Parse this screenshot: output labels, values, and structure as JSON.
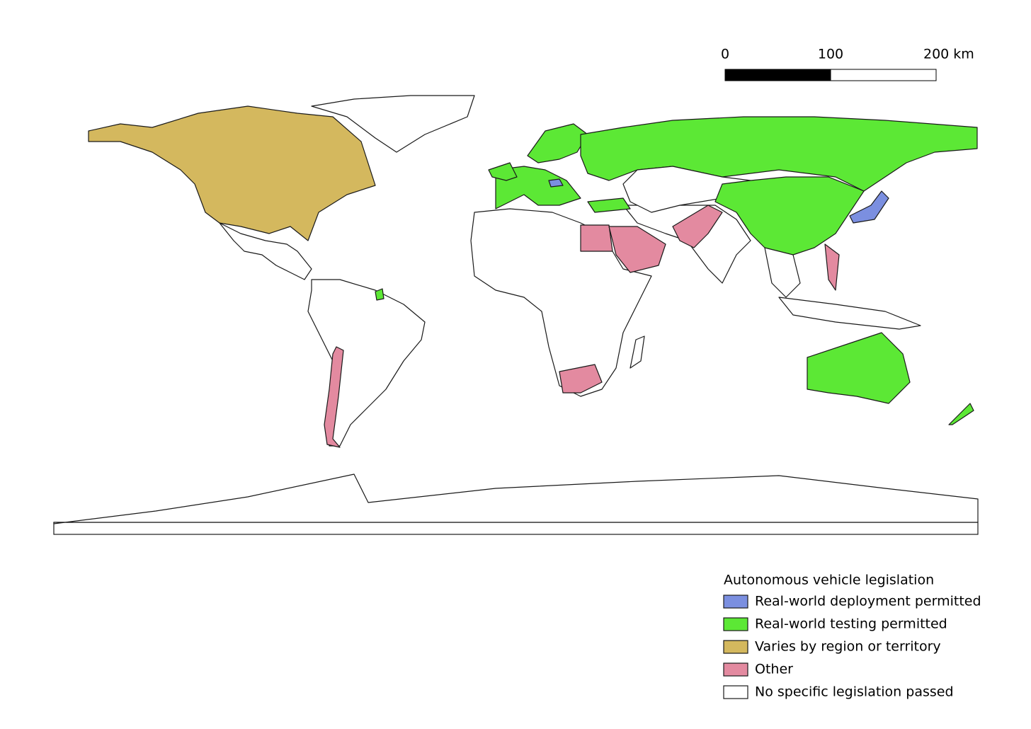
{
  "scale_bar": {
    "range": [
      0,
      200
    ],
    "ticks": [
      0,
      100,
      {
        "value": 200,
        "label": "200 km"
      }
    ]
  },
  "legend": {
    "title": "Autonomous vehicle legislation",
    "items": [
      {
        "label": "Real-world deployment permitted",
        "color": "#7b8fe0"
      },
      {
        "label": "Real-world testing permitted",
        "color": "#5ce835"
      },
      {
        "label": "Varies by region or territory",
        "color": "#d4b85e"
      },
      {
        "label": "Other",
        "color": "#e38aa0"
      },
      {
        "label": "No specific legislation passed",
        "color": "#ffffff"
      }
    ]
  }
}
